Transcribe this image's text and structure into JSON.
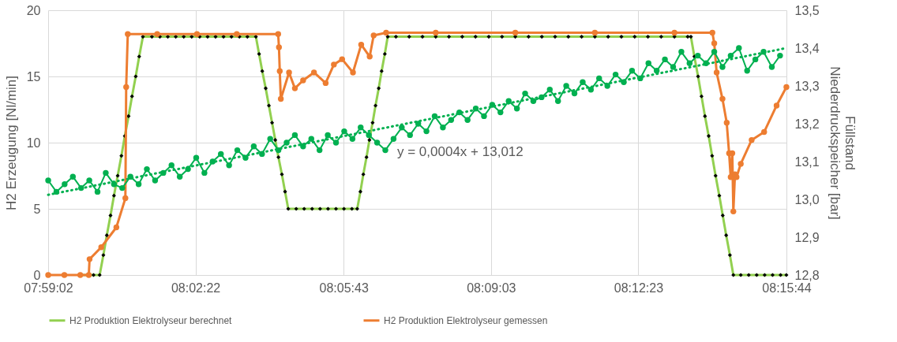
{
  "chart_data": {
    "type": "line",
    "ylabel": "H2 Erzeugung [Nl/min]",
    "y2label": "Füllstand Niederdruckspeicher [bar]",
    "annotations": [
      "y = 0,0004x + 13,012"
    ],
    "xlim": [
      7.98389,
      8.26222
    ],
    "xticks": [
      {
        "value": 7.98389,
        "label": "07:59:02"
      },
      {
        "value": 8.03944,
        "label": "08:02:22"
      },
      {
        "value": 8.09528,
        "label": "08:05:43"
      },
      {
        "value": 8.15083,
        "label": "08:09:03"
      },
      {
        "value": 8.20639,
        "label": "08:12:23"
      },
      {
        "value": 8.26222,
        "label": "08:15:44"
      }
    ],
    "ylim": [
      0,
      20
    ],
    "yticks": [
      0,
      5,
      10,
      15,
      20
    ],
    "y2lim": [
      12.8,
      13.5
    ],
    "y2ticks": [
      {
        "value": 12.8,
        "label": "12,8"
      },
      {
        "value": 12.9,
        "label": "12,9"
      },
      {
        "value": 13.0,
        "label": "13,0"
      },
      {
        "value": 13.1,
        "label": "13,1"
      },
      {
        "value": 13.2,
        "label": "13,2"
      },
      {
        "value": 13.3,
        "label": "13,3"
      },
      {
        "value": 13.4,
        "label": "13,4"
      },
      {
        "value": 13.5,
        "label": "13,5"
      }
    ],
    "grid": true,
    "legend": "bottom",
    "series": [
      {
        "type": "line",
        "axis": "y2",
        "color": "#00b050",
        "marker": "circle",
        "line_style": "solid",
        "x": [
          7.9839,
          7.987,
          7.9901,
          7.9932,
          7.9963,
          7.9994,
          8.0025,
          8.0056,
          8.0087,
          8.0118,
          8.0149,
          8.018,
          8.0211,
          8.0242,
          8.0273,
          8.0304,
          8.0335,
          8.0366,
          8.0397,
          8.0428,
          8.0459,
          8.049,
          8.0521,
          8.0552,
          8.0583,
          8.0614,
          8.0645,
          8.0676,
          8.0707,
          8.0738,
          8.0769,
          8.08,
          8.0831,
          8.0862,
          8.0893,
          8.0924,
          8.0955,
          8.0986,
          8.1017,
          8.1048,
          8.1079,
          8.111,
          8.1141,
          8.1172,
          8.1203,
          8.1234,
          8.1265,
          8.1296,
          8.1327,
          8.1358,
          8.1389,
          8.142,
          8.1451,
          8.1482,
          8.1513,
          8.1544,
          8.1575,
          8.1606,
          8.1637,
          8.1668,
          8.1699,
          8.173,
          8.1761,
          8.1792,
          8.1823,
          8.1854,
          8.1885,
          8.1916,
          8.1947,
          8.1978,
          8.2009,
          8.204,
          8.2071,
          8.2102,
          8.2133,
          8.2164,
          8.2195,
          8.2226,
          8.2257,
          8.2288,
          8.2319,
          8.235,
          8.2381,
          8.2412,
          8.2443,
          8.2474,
          8.2505,
          8.2536,
          8.2567,
          8.2598
        ],
        "values": [
          13.05,
          13.02,
          13.04,
          13.06,
          13.03,
          13.05,
          13.02,
          13.07,
          13.04,
          13.03,
          13.06,
          13.04,
          13.08,
          13.05,
          13.07,
          13.09,
          13.06,
          13.08,
          13.11,
          13.07,
          13.1,
          13.12,
          13.09,
          13.13,
          13.11,
          13.14,
          13.12,
          13.16,
          13.13,
          13.15,
          13.17,
          13.14,
          13.16,
          13.13,
          13.17,
          13.15,
          13.18,
          13.16,
          13.19,
          13.17,
          13.15,
          13.13,
          13.16,
          13.19,
          13.17,
          13.2,
          13.18,
          13.22,
          13.19,
          13.21,
          13.23,
          13.21,
          13.24,
          13.22,
          13.25,
          13.23,
          13.26,
          13.24,
          13.28,
          13.26,
          13.27,
          13.29,
          13.26,
          13.3,
          13.28,
          13.31,
          13.29,
          13.32,
          13.3,
          13.33,
          13.31,
          13.34,
          13.32,
          13.36,
          13.34,
          13.37,
          13.35,
          13.39,
          13.36,
          13.38,
          13.36,
          13.39,
          13.35,
          13.38,
          13.4,
          13.34,
          13.37,
          13.39,
          13.35,
          13.38
        ]
      },
      {
        "type": "line",
        "axis": "y2",
        "color": "#00b050",
        "marker": "none",
        "line_style": "dotted",
        "x": [
          7.9839,
          8.2622
        ],
        "values": [
          13.012,
          13.4
        ]
      },
      {
        "type": "line",
        "axis": "y",
        "name": "H2 Produktion Elektrolyseur berechnet",
        "color": "#92d050",
        "marker": "diamond",
        "line_style": "solid",
        "x": [
          7.996,
          7.999,
          8.001,
          8.0033,
          8.0047,
          8.006,
          8.0074,
          8.0087,
          8.0101,
          8.0115,
          8.0128,
          8.0142,
          8.0155,
          8.0169,
          8.0182,
          8.0196,
          8.023,
          8.026,
          8.029,
          8.032,
          8.035,
          8.038,
          8.041,
          8.044,
          8.047,
          8.05,
          8.053,
          8.056,
          8.059,
          8.0622,
          8.0634,
          8.0646,
          8.0659,
          8.0671,
          8.0683,
          8.0695,
          8.0707,
          8.072,
          8.0732,
          8.0744,
          8.0774,
          8.0804,
          8.0834,
          8.0864,
          8.0894,
          8.0924,
          8.0954,
          8.0984,
          8.1004,
          8.1016,
          8.1027,
          8.1039,
          8.105,
          8.1062,
          8.1073,
          8.1085,
          8.1096,
          8.1108,
          8.1119,
          8.115,
          8.12,
          8.125,
          8.13,
          8.135,
          8.14,
          8.145,
          8.15,
          8.155,
          8.16,
          8.165,
          8.17,
          8.175,
          8.18,
          8.185,
          8.19,
          8.195,
          8.2,
          8.205,
          8.21,
          8.215,
          8.22,
          8.225,
          8.2262,
          8.2275,
          8.2289,
          8.2302,
          8.2315,
          8.2329,
          8.2342,
          8.2355,
          8.2369,
          8.2382,
          8.2395,
          8.2409,
          8.2422,
          8.245,
          8.248,
          8.251,
          8.254,
          8.257,
          8.26,
          8.2622
        ],
        "values": [
          0,
          0,
          0,
          0,
          1.5,
          3,
          4.5,
          6,
          7.5,
          9,
          10.5,
          12,
          13.5,
          15,
          16.5,
          18,
          18,
          18,
          18,
          18,
          18,
          18,
          18,
          18,
          18,
          18,
          18,
          18,
          18,
          18,
          16.7,
          15.4,
          14.1,
          12.8,
          11.5,
          10.2,
          8.9,
          7.6,
          6.3,
          5,
          5,
          5,
          5,
          5,
          5,
          5,
          5,
          5,
          5,
          6.3,
          7.6,
          8.9,
          10.2,
          11.5,
          12.8,
          14.1,
          15.4,
          16.7,
          18,
          18,
          18,
          18,
          18,
          18,
          18,
          18,
          18,
          18,
          18,
          18,
          18,
          18,
          18,
          18,
          18,
          18,
          18,
          18,
          18,
          18,
          18,
          18,
          18,
          16.5,
          15,
          13.5,
          12,
          10.5,
          9,
          7.5,
          6,
          4.5,
          3,
          1.5,
          0,
          0,
          0,
          0,
          0,
          0,
          0,
          0
        ]
      },
      {
        "type": "line",
        "axis": "y",
        "name": "H2 Produktion Elektrolyseur gemessen",
        "color": "#ed7d31",
        "marker": "circle",
        "line_style": "solid",
        "x": [
          7.9839,
          7.99,
          7.996,
          7.9992,
          7.9995,
          8.0039,
          8.0096,
          8.013,
          8.0133,
          8.0139,
          8.025,
          8.04,
          8.055,
          8.0706,
          8.0709,
          8.0712,
          8.0716,
          8.0747,
          8.0769,
          8.08,
          8.0841,
          8.0885,
          8.0916,
          8.0947,
          8.0988,
          8.1019,
          8.1051,
          8.1066,
          8.1113,
          8.13,
          8.16,
          8.19,
          8.22,
          8.2343,
          8.235,
          8.2359,
          8.2381,
          8.2397,
          8.2406,
          8.2412,
          8.2418,
          8.2422,
          8.2428,
          8.2434,
          8.245,
          8.2491,
          8.2538,
          8.2585,
          8.2622
        ],
        "values": [
          0,
          0,
          0,
          0,
          1.2,
          2.1,
          3.6,
          5.8,
          14.2,
          18.2,
          18.2,
          18.2,
          18.2,
          18.2,
          17.2,
          15.4,
          13.3,
          15.3,
          14.1,
          14.7,
          15.3,
          14.5,
          15.9,
          16.3,
          15.3,
          17.4,
          16.5,
          18.1,
          18.3,
          18.3,
          18.3,
          18.3,
          18.3,
          18.3,
          17.5,
          15.3,
          13.3,
          11.5,
          9.2,
          7.4,
          9.2,
          4.8,
          7.6,
          7.4,
          8.4,
          10.2,
          10.8,
          12.8,
          14.2
        ]
      }
    ]
  }
}
